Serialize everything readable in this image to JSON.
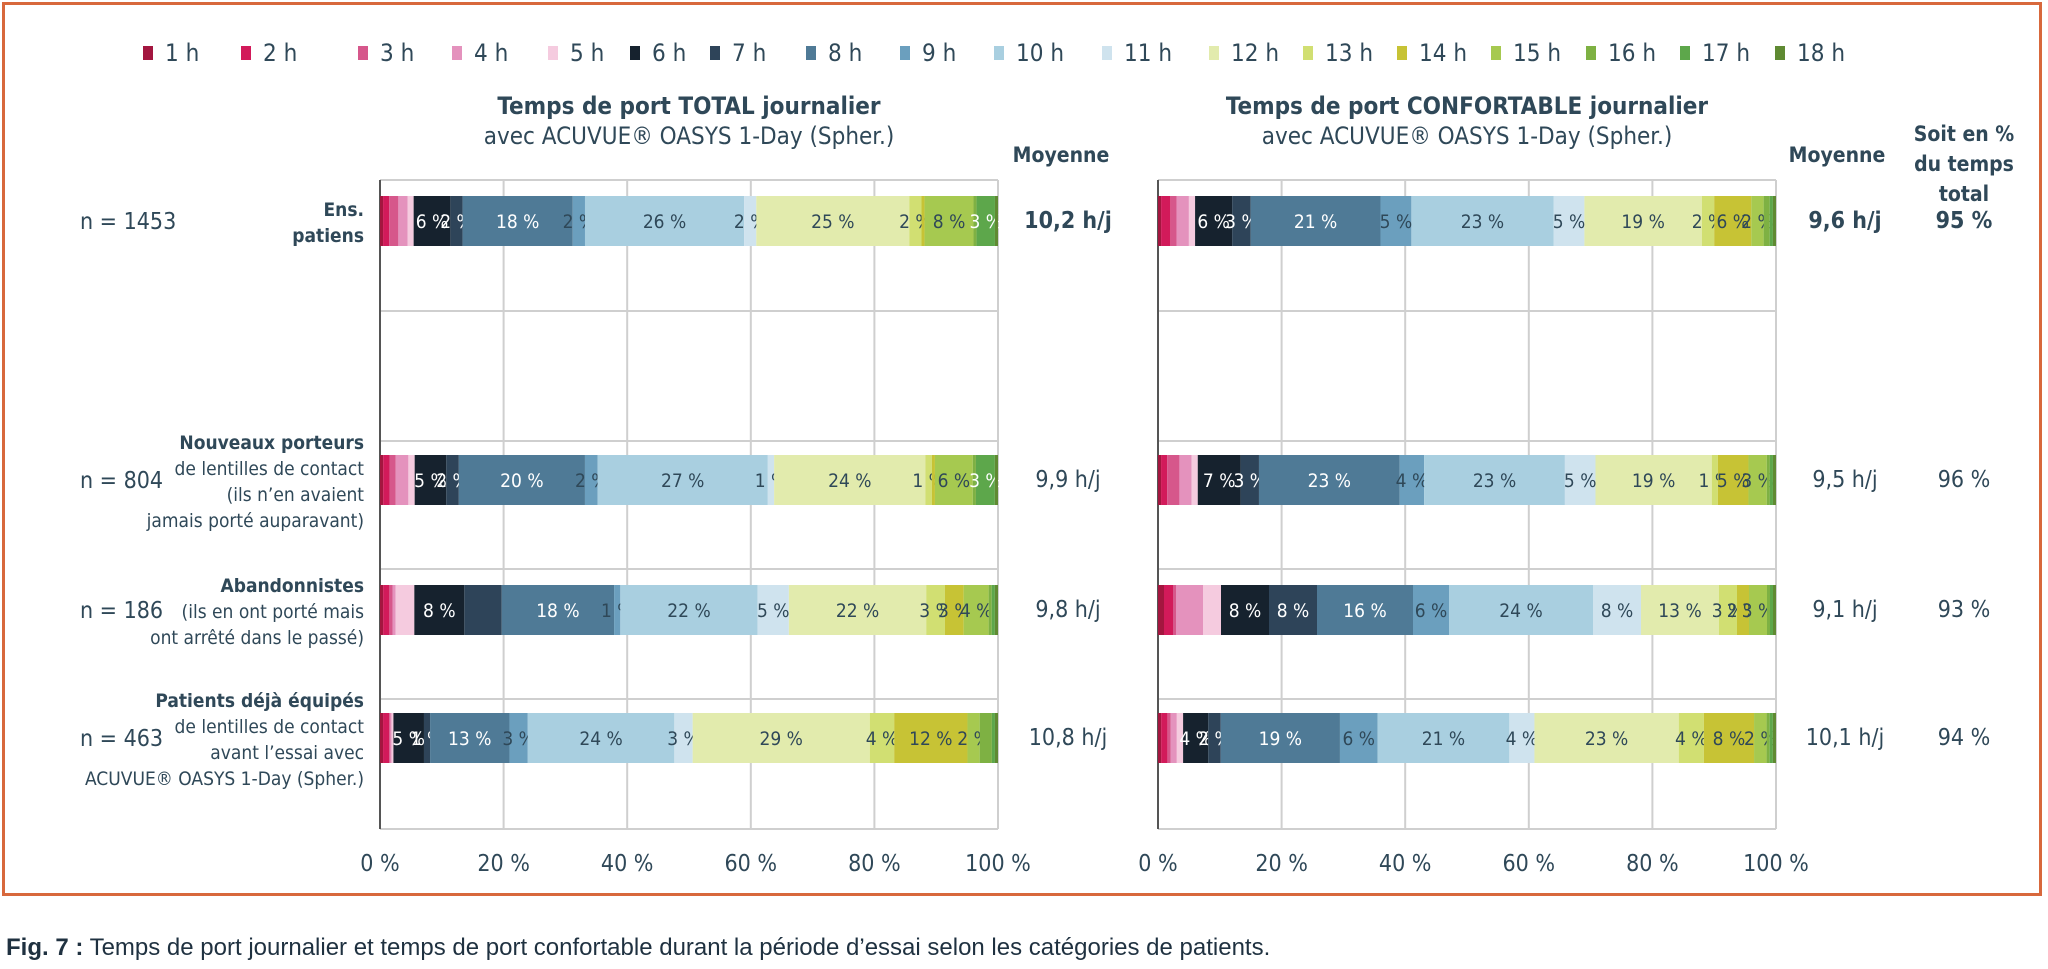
{
  "caption": {
    "label": "Fig. 7 :",
    "text": "Temps de port journalier et temps de port confortable durant la période d’essai selon les catégories de patients."
  },
  "mean_header": "Moyenne",
  "percent_header": [
    "Soit en %",
    "du temps",
    "total"
  ],
  "colors": [
    "#a3163f",
    "#d21a5a",
    "#d6578b",
    "#e492bd",
    "#f5cbdf",
    "#16222e",
    "#2e4459",
    "#4f7a96",
    "#6b9fbe",
    "#a9cfe0",
    "#cfe3ee",
    "#e2ebad",
    "#d1df72",
    "#c7c335",
    "#a6c950",
    "#7eb143",
    "#5da74b",
    "#5f8a32"
  ],
  "rows": [
    {
      "n": "n = 1453",
      "label": [
        "Ens.",
        "patiens"
      ],
      "bold_lines": 2
    },
    {
      "n": "n = 804",
      "label": [
        "Nouveaux porteurs",
        "de lentilles de contact",
        "(ils n’en avaient",
        "jamais porté auparavant)"
      ],
      "bold_lines": 1
    },
    {
      "n": "n = 186",
      "label": [
        "Abandonnistes",
        "(ils en ont porté mais",
        "ont arrêté dans le passé)"
      ],
      "bold_lines": 1
    },
    {
      "n": "n = 463",
      "label": [
        "Patients déjà équipés",
        "de lentilles de contact",
        "avant l’essai avec",
        "ACUVUE® OASYS 1-Day (Spher.)"
      ],
      "bold_lines": 1
    }
  ],
  "chart_data": {
    "type": "bar",
    "orientation": "horizontal",
    "stacked": true,
    "legend": [
      "1 h",
      "2 h",
      "3 h",
      "4 h",
      "5 h",
      "6 h",
      "7 h",
      "8 h",
      "9 h",
      "10 h",
      "11 h",
      "12 h",
      "13 h",
      "14 h",
      "15 h",
      "16 h",
      "17 h",
      "18 h"
    ],
    "legend_position": "top",
    "xlim": [
      0,
      100
    ],
    "x_ticks": [
      "0 %",
      "20 %",
      "40 %",
      "60 %",
      "80 %",
      "100 %"
    ],
    "grid": true,
    "panels": [
      {
        "title": [
          "Temps de port TOTAL journalier",
          "avec ACUVUE® OASYS 1-Day (Spher.)"
        ],
        "title_bold_lines": 1,
        "rows": [
          {
            "values": [
              0.5,
              1,
              1.5,
              1.5,
              1,
              6,
              2,
              18,
              2,
              26,
              2,
              25,
              2,
              0.5,
              8,
              0.5,
              3,
              0.5
            ],
            "labels": {
              "5": "6 %",
              "6": "2 %",
              "7": "18 %",
              "8": "2 %",
              "9": "26 %",
              "10": "2 %",
              "11": "25 %",
              "12": "2 %",
              "14": "8 %",
              "16": "3 %"
            },
            "mean": "10,2 h/j",
            "bold": true
          },
          {
            "values": [
              0.5,
              1,
              1,
              2,
              1,
              5,
              2,
              20,
              2,
              27,
              1,
              24,
              1,
              0.5,
              6,
              0.5,
              3,
              0.5
            ],
            "labels": {
              "5": "5 %",
              "6": "2 %",
              "7": "20 %",
              "8": "2 %",
              "9": "27 %",
              "10": "1 %",
              "11": "24 %",
              "12": "1 %",
              "14": "6 %",
              "16": "3 %"
            },
            "mean": "9,9 h/j",
            "bold": false
          },
          {
            "values": [
              0.5,
              1,
              0.5,
              0.5,
              3,
              8,
              6,
              18,
              1,
              22,
              5,
              22,
              3,
              3,
              4,
              0.5,
              0.5,
              0.5
            ],
            "labels": {
              "5": "8 %",
              "7": "18 %",
              "8": "1 %",
              "9": "22 %",
              "10": "5 %",
              "11": "22 %",
              "12": "3 %",
              "13": "3 %",
              "14": "4 %"
            },
            "mean": "9,8 h/j",
            "bold": false
          },
          {
            "values": [
              0.5,
              1,
              0.2,
              0.2,
              0.3,
              5,
              1,
              13,
              3,
              24,
              3,
              29,
              4,
              12,
              2,
              2,
              0.5,
              0.5
            ],
            "labels": {
              "5": "5 %",
              "6": "1 %",
              "7": "13 %",
              "8": "3 %",
              "9": "24 %",
              "10": "3 %",
              "11": "29 %",
              "12": "4 %",
              "13": "12 %",
              "14": "2 %"
            },
            "mean": "10,8 h/j",
            "bold": false
          }
        ]
      },
      {
        "title": [
          "Temps de port CONFORTABLE journalier",
          "avec ACUVUE® OASYS 1-Day (Spher.)"
        ],
        "title_bold_lines": 1,
        "rows": [
          {
            "values": [
              0.5,
              1.5,
              1,
              2,
              1,
              6,
              3,
              21,
              5,
              23,
              5,
              19,
              2,
              6,
              2,
              1,
              0.5,
              0.5
            ],
            "labels": {
              "5": "6 %",
              "6": "3 %",
              "7": "21 %",
              "8": "5 %",
              "9": "23 %",
              "10": "5 %",
              "11": "19 %",
              "12": "2 %",
              "13": "6 %",
              "14": "2 %"
            },
            "mean": "9,6 h/j",
            "percent": "95 %",
            "bold": true
          },
          {
            "values": [
              0.5,
              1,
              2,
              2,
              1,
              7,
              3,
              23,
              4,
              23,
              5,
              19,
              1,
              5,
              3,
              0.5,
              0.5,
              0.5
            ],
            "labels": {
              "5": "7 %",
              "6": "3 %",
              "7": "23 %",
              "8": "4 %",
              "9": "23 %",
              "10": "5 %",
              "11": "19 %",
              "12": "1 %",
              "13": "5 %",
              "14": "3 %"
            },
            "mean": "9,5 h/j",
            "percent": "96 %",
            "bold": false
          },
          {
            "values": [
              1,
              1.5,
              0.5,
              4.5,
              3,
              8,
              8,
              16,
              6,
              24,
              8,
              13,
              3,
              2,
              3,
              0.5,
              0.5,
              0.5
            ],
            "labels": {
              "5": "8 %",
              "6": "8 %",
              "7": "16 %",
              "8": "6 %",
              "9": "24 %",
              "10": "8 %",
              "11": "13 %",
              "12": "3 %",
              "13": "2 %",
              "14": "3 %"
            },
            "mean": "9,1 h/j",
            "percent": "93 %",
            "bold": false
          },
          {
            "values": [
              0.5,
              1,
              0.5,
              1,
              1,
              4,
              2,
              19,
              6,
              21,
              4,
              23,
              4,
              8,
              2,
              0.5,
              0.5,
              0.5
            ],
            "labels": {
              "5": "4 %",
              "6": "2 %",
              "7": "19 %",
              "8": "6 %",
              "9": "21 %",
              "10": "4 %",
              "11": "23 %",
              "12": "4 %",
              "13": "8 %",
              "14": "2 %"
            },
            "mean": "10,1 h/j",
            "percent": "94 %",
            "bold": false
          }
        ]
      }
    ]
  }
}
